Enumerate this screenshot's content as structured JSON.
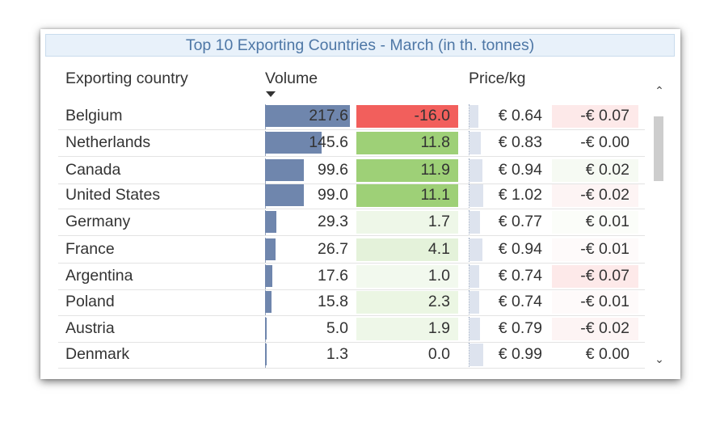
{
  "title": "Top 10 Exporting Countries - March (in th. tonnes)",
  "headers": {
    "country": "Exporting country",
    "volume": "Volume",
    "price": "Price/kg"
  },
  "colors": {
    "volume_bar": "#6f86ad",
    "negative_strong": "#f25f5c",
    "negative_light": "#fde9e9",
    "positive_strong": "#9ed077",
    "positive_light": "#e4f2da",
    "positive_faint": "#f2f9ee",
    "price_bar": "#dde3ee"
  },
  "volume_max": 217.6,
  "price_max": 1.02,
  "rows": [
    {
      "country": "Belgium",
      "volume": "217.6",
      "volume_value": 217.6,
      "change": "-16.0",
      "change_color": "#f25f5c",
      "price": "€ 0.64",
      "price_value": 0.64,
      "price_change": "-€ 0.07",
      "price_change_color": "#fde9e9"
    },
    {
      "country": "Netherlands",
      "volume": "145.6",
      "volume_value": 145.6,
      "change": "11.8",
      "change_color": "#9ed077",
      "price": "€ 0.83",
      "price_value": 0.83,
      "price_change": "-€ 0.00",
      "price_change_color": "#ffffff"
    },
    {
      "country": "Canada",
      "volume": "99.6",
      "volume_value": 99.6,
      "change": "11.9",
      "change_color": "#9ed077",
      "price": "€ 0.94",
      "price_value": 0.94,
      "price_change": "€ 0.02",
      "price_change_color": "#f6faf3"
    },
    {
      "country": "United States",
      "volume": "99.0",
      "volume_value": 99.0,
      "change": "11.1",
      "change_color": "#9ed077",
      "price": "€ 1.02",
      "price_value": 1.02,
      "price_change": "-€ 0.02",
      "price_change_color": "#fdf4f4"
    },
    {
      "country": "Germany",
      "volume": "29.3",
      "volume_value": 29.3,
      "change": "1.7",
      "change_color": "#eef7e8",
      "price": "€ 0.77",
      "price_value": 0.77,
      "price_change": "€ 0.01",
      "price_change_color": "#fbfdf9"
    },
    {
      "country": "France",
      "volume": "26.7",
      "volume_value": 26.7,
      "change": "4.1",
      "change_color": "#e4f2da",
      "price": "€ 0.94",
      "price_value": 0.94,
      "price_change": "-€ 0.01",
      "price_change_color": "#fefafa"
    },
    {
      "country": "Argentina",
      "volume": "17.6",
      "volume_value": 17.6,
      "change": "1.0",
      "change_color": "#f2f9ee",
      "price": "€ 0.74",
      "price_value": 0.74,
      "price_change": "-€ 0.07",
      "price_change_color": "#fde9e9"
    },
    {
      "country": "Poland",
      "volume": "15.8",
      "volume_value": 15.8,
      "change": "2.3",
      "change_color": "#ebf6e3",
      "price": "€ 0.74",
      "price_value": 0.74,
      "price_change": "-€ 0.01",
      "price_change_color": "#fefafa"
    },
    {
      "country": "Austria",
      "volume": "5.0",
      "volume_value": 5.0,
      "change": "1.9",
      "change_color": "#eef7e8",
      "price": "€ 0.79",
      "price_value": 0.79,
      "price_change": "-€ 0.02",
      "price_change_color": "#fdf4f4"
    },
    {
      "country": "Denmark",
      "volume": "1.3",
      "volume_value": 1.3,
      "change": "0.0",
      "change_color": "#ffffff",
      "price": "€ 0.99",
      "price_value": 0.99,
      "price_change": "€ 0.00",
      "price_change_color": "#ffffff"
    }
  ],
  "scrollbar": {
    "up_icon": "chevron-up-icon",
    "down_icon": "chevron-down-icon"
  }
}
